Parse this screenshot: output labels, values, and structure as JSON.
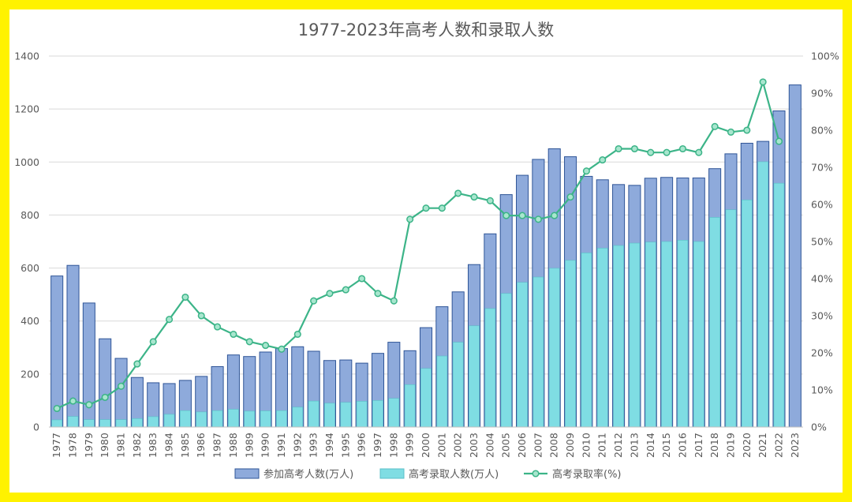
{
  "chart_data": {
    "type": "bar",
    "title": "1977-2023年高考人数和录取人数",
    "categories": [
      "1977",
      "1978",
      "1979",
      "1980",
      "1981",
      "1982",
      "1983",
      "1984",
      "1985",
      "1986",
      "1987",
      "1988",
      "1989",
      "1990",
      "1991",
      "1992",
      "1993",
      "1994",
      "1995",
      "1996",
      "1997",
      "1998",
      "1999",
      "2000",
      "2001",
      "2002",
      "2003",
      "2004",
      "2005",
      "2006",
      "2007",
      "2008",
      "2009",
      "2010",
      "2011",
      "2012",
      "2013",
      "2014",
      "2015",
      "2016",
      "2017",
      "2018",
      "2019",
      "2020",
      "2021",
      "2022",
      "2023"
    ],
    "series": [
      {
        "name": "参加高考人数(万人)",
        "chart_type": "bar",
        "axis": "left",
        "color": "#8EAADB",
        "values": [
          570,
          610,
          468,
          333,
          259,
          187,
          167,
          164,
          176,
          191,
          228,
          272,
          266,
          283,
          296,
          303,
          286,
          251,
          253,
          241,
          278,
          320,
          288,
          375,
          454,
          510,
          613,
          729,
          877,
          950,
          1010,
          1050,
          1020,
          946,
          933,
          915,
          912,
          939,
          942,
          940,
          940,
          975,
          1031,
          1071,
          1078,
          1193,
          1291
        ]
      },
      {
        "name": "高考录取人数(万人)",
        "chart_type": "bar",
        "axis": "left",
        "color": "#7FDDE3",
        "values": [
          27,
          40,
          28,
          28,
          28,
          32,
          39,
          48,
          62,
          57,
          62,
          67,
          60,
          61,
          62,
          75,
          98,
          90,
          93,
          97,
          100,
          108,
          160,
          221,
          268,
          320,
          382,
          447,
          504,
          546,
          566,
          599,
          629,
          657,
          675,
          685,
          694,
          698,
          700,
          705,
          700,
          791,
          820,
          857,
          1001,
          920,
          0
        ]
      },
      {
        "name": "高考录取率(%)",
        "chart_type": "line",
        "axis": "right",
        "color": "#3CB488",
        "values": [
          5,
          7,
          6,
          8,
          11,
          17,
          23,
          29,
          35,
          30,
          27,
          25,
          23,
          22,
          21,
          25,
          34,
          36,
          37,
          40,
          36,
          34,
          56,
          59,
          59,
          63,
          62,
          61,
          57,
          57,
          56,
          57,
          62,
          69,
          72,
          75,
          75,
          74,
          74,
          75,
          74,
          81,
          79.5,
          80,
          93,
          77,
          null
        ]
      }
    ],
    "y_left": {
      "min": 0,
      "max": 1400,
      "step": 200,
      "tick_labels": [
        "0",
        "200",
        "400",
        "600",
        "800",
        "1000",
        "1200",
        "1400"
      ]
    },
    "y_right": {
      "min": 0,
      "max": 100,
      "step": 10,
      "tick_labels": [
        "0%",
        "10%",
        "20%",
        "30%",
        "40%",
        "50%",
        "60%",
        "70%",
        "80%",
        "90%",
        "100%"
      ]
    },
    "grid": true,
    "legend_position": "bottom"
  },
  "colors": {
    "frame": "#FFF200",
    "bar_total_fill": "#8EAADB",
    "bar_total_stroke": "#2F5597",
    "bar_admit_fill": "#7FDDE3",
    "bar_admit_stroke": "#5BC0C8",
    "line": "#3CB488",
    "marker_fill": "#A8E6CE",
    "grid": "#D9D9D9",
    "axis_text": "#595959"
  }
}
